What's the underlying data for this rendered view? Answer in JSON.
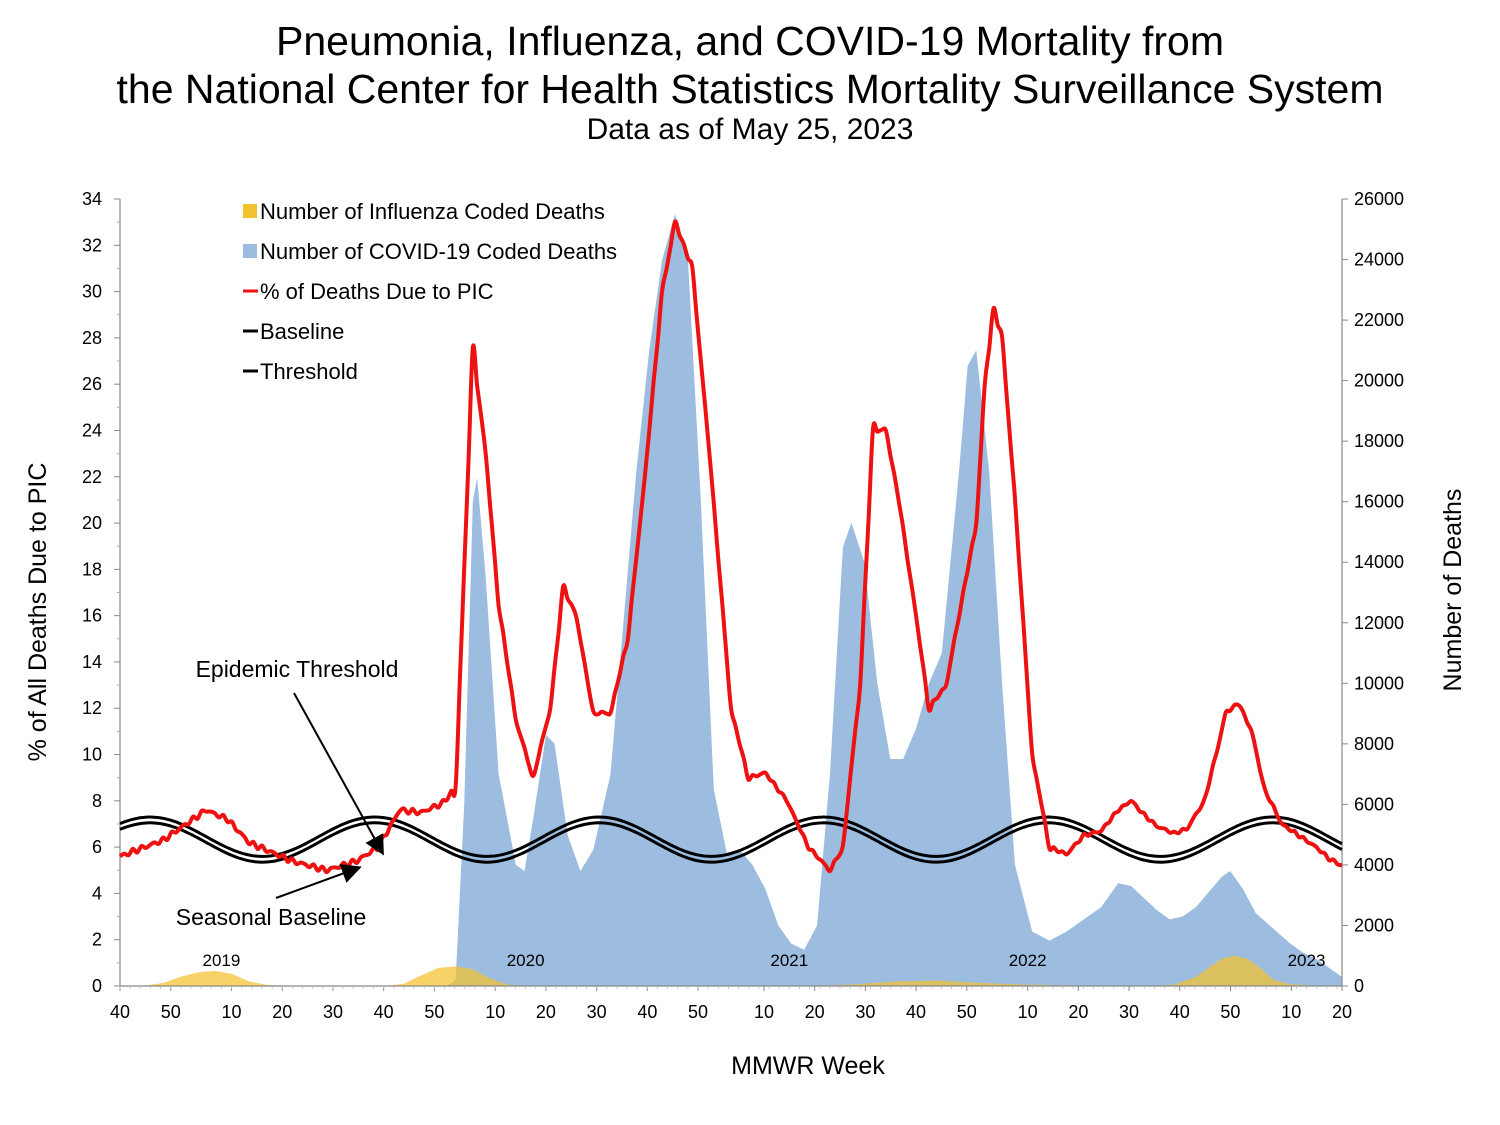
{
  "chart_data": {
    "type": "area",
    "title_line1": "Pneumonia, Influenza, and COVID-19 Mortality from",
    "title_line2": "the National Center for Health Statistics Mortality Surveillance System",
    "subtitle": "Data as of May 25, 2023",
    "xlabel": "MMWR Week",
    "ylabel_left": "% of All Deaths Due to PIC",
    "ylabel_right": "Number of Deaths",
    "ylim_left": [
      0,
      34
    ],
    "ylim_right": [
      0,
      26000
    ],
    "left_ticks": [
      0,
      2,
      4,
      6,
      8,
      10,
      12,
      14,
      16,
      18,
      20,
      22,
      24,
      26,
      28,
      30,
      32,
      34
    ],
    "right_ticks": [
      0,
      2000,
      4000,
      6000,
      8000,
      10000,
      12000,
      14000,
      16000,
      18000,
      20000,
      22000,
      24000,
      26000
    ],
    "x_ticks": [
      "40",
      "50",
      "10",
      "20",
      "30",
      "40",
      "50",
      "10",
      "20",
      "30",
      "40",
      "50",
      "10",
      "20",
      "30",
      "40",
      "50",
      "10",
      "20",
      "30",
      "40",
      "50",
      "10",
      "20"
    ],
    "year_labels": [
      {
        "label": "2019",
        "week_index": 20
      },
      {
        "label": "2020",
        "week_index": 80
      },
      {
        "label": "2021",
        "week_index": 132
      },
      {
        "label": "2022",
        "week_index": 179
      },
      {
        "label": "2023",
        "week_index": 234
      }
    ],
    "legend": [
      {
        "label": "Number of Influenza Coded Deaths",
        "kind": "area",
        "color": "#f2c12e"
      },
      {
        "label": "Number of COVID-19 Coded Deaths",
        "kind": "area",
        "color": "#9dbde0"
      },
      {
        "label": "% of Deaths Due to PIC",
        "kind": "line",
        "color": "#ee1111"
      },
      {
        "label": "Baseline",
        "kind": "line",
        "color": "#000000"
      },
      {
        "label": "Threshold",
        "kind": "line",
        "color": "#000000"
      }
    ],
    "legend_position": "top-left",
    "annotations": [
      {
        "label": "Epidemic Threshold"
      },
      {
        "label": "Seasonal Baseline"
      }
    ],
    "n_weeks": 241,
    "series": [
      {
        "name": "% of Deaths Due to PIC",
        "axis": "left",
        "color": "#ee1111",
        "points": [
          [
            0,
            5.6
          ],
          [
            10,
            6.3
          ],
          [
            20,
            7.6
          ],
          [
            25,
            7.2
          ],
          [
            30,
            6.2
          ],
          [
            40,
            5.4
          ],
          [
            48,
            5.0
          ],
          [
            55,
            5.4
          ],
          [
            60,
            6.0
          ],
          [
            65,
            7.6
          ],
          [
            70,
            7.5
          ],
          [
            75,
            7.9
          ],
          [
            78,
            8.6
          ],
          [
            80,
            18.0
          ],
          [
            82,
            27.5
          ],
          [
            85,
            23.0
          ],
          [
            88,
            16.5
          ],
          [
            92,
            11.5
          ],
          [
            96,
            9.0
          ],
          [
            100,
            12.0
          ],
          [
            103,
            17.2
          ],
          [
            106,
            16.0
          ],
          [
            110,
            11.8
          ],
          [
            114,
            11.8
          ],
          [
            118,
            15.0
          ],
          [
            122,
            22.0
          ],
          [
            126,
            30.0
          ],
          [
            129,
            33.0
          ],
          [
            133,
            31.0
          ],
          [
            137,
            23.0
          ],
          [
            142,
            12.0
          ],
          [
            146,
            9.0
          ],
          [
            150,
            9.2
          ],
          [
            155,
            8.0
          ],
          [
            160,
            6.0
          ],
          [
            165,
            5.0
          ],
          [
            168,
            6.0
          ],
          [
            172,
            13.0
          ],
          [
            175,
            24.0
          ],
          [
            178,
            24.0
          ],
          [
            181,
            21.0
          ],
          [
            185,
            16.0
          ],
          [
            188,
            12.0
          ],
          [
            192,
            13.0
          ],
          [
            195,
            16.0
          ],
          [
            199,
            20.0
          ],
          [
            201,
            26.0
          ],
          [
            203,
            29.2
          ],
          [
            205,
            28.0
          ],
          [
            208,
            21.0
          ],
          [
            212,
            10.0
          ],
          [
            216,
            6.0
          ],
          [
            220,
            5.7
          ],
          [
            224,
            6.5
          ],
          [
            228,
            6.7
          ],
          [
            232,
            7.6
          ],
          [
            235,
            8.0
          ],
          [
            238,
            7.4
          ],
          [
            241,
            6.9
          ],
          [
            245,
            6.6
          ],
          [
            248,
            6.8
          ],
          [
            252,
            8.0
          ],
          [
            255,
            10.2
          ],
          [
            257,
            11.8
          ],
          [
            260,
            12.2
          ],
          [
            263,
            11.0
          ],
          [
            266,
            8.5
          ],
          [
            270,
            7.0
          ],
          [
            274,
            6.5
          ],
          [
            278,
            6.0
          ],
          [
            281,
            5.5
          ],
          [
            284,
            5.2
          ]
        ]
      },
      {
        "name": "Baseline",
        "axis": "left",
        "color": "#000000",
        "mean": 6.2,
        "amplitude": 0.85,
        "phase_week": 7,
        "period": 52.18
      },
      {
        "name": "Threshold",
        "axis": "left",
        "color": "#000000",
        "mean": 6.45,
        "amplitude": 0.85,
        "phase_week": 7,
        "period": 52.18
      },
      {
        "name": "Number of COVID-19 Coded Deaths",
        "axis": "right",
        "color": "#9dbde0",
        "points": [
          [
            0,
            0
          ],
          [
            76,
            0
          ],
          [
            78,
            200
          ],
          [
            80,
            6000
          ],
          [
            82,
            16000
          ],
          [
            83,
            16800
          ],
          [
            85,
            13500
          ],
          [
            88,
            7000
          ],
          [
            92,
            4000
          ],
          [
            94,
            3800
          ],
          [
            96,
            5500
          ],
          [
            99,
            8300
          ],
          [
            101,
            8000
          ],
          [
            104,
            5000
          ],
          [
            107,
            3800
          ],
          [
            110,
            4500
          ],
          [
            114,
            7000
          ],
          [
            117,
            12000
          ],
          [
            120,
            17000
          ],
          [
            123,
            21000
          ],
          [
            126,
            24000
          ],
          [
            129,
            25500
          ],
          [
            132,
            24000
          ],
          [
            135,
            16000
          ],
          [
            138,
            6500
          ],
          [
            141,
            4400
          ],
          [
            144,
            4500
          ],
          [
            147,
            4000
          ],
          [
            150,
            3200
          ],
          [
            153,
            2000
          ],
          [
            156,
            1400
          ],
          [
            159,
            1200
          ],
          [
            162,
            2000
          ],
          [
            165,
            7000
          ],
          [
            168,
            14500
          ],
          [
            170,
            15300
          ],
          [
            173,
            14000
          ],
          [
            176,
            10000
          ],
          [
            179,
            7500
          ],
          [
            182,
            7500
          ],
          [
            185,
            8500
          ],
          [
            188,
            10000
          ],
          [
            191,
            11000
          ],
          [
            193,
            14000
          ],
          [
            195,
            17000
          ],
          [
            197,
            20500
          ],
          [
            199,
            21000
          ],
          [
            202,
            17000
          ],
          [
            205,
            10000
          ],
          [
            208,
            4000
          ],
          [
            212,
            1800
          ],
          [
            216,
            1500
          ],
          [
            220,
            1800
          ],
          [
            224,
            2200
          ],
          [
            228,
            2600
          ],
          [
            232,
            3400
          ],
          [
            235,
            3300
          ],
          [
            238,
            2900
          ],
          [
            241,
            2500
          ],
          [
            244,
            2200
          ],
          [
            247,
            2300
          ],
          [
            250,
            2600
          ],
          [
            253,
            3100
          ],
          [
            256,
            3600
          ],
          [
            258,
            3800
          ],
          [
            261,
            3200
          ],
          [
            264,
            2400
          ],
          [
            268,
            1900
          ],
          [
            272,
            1400
          ],
          [
            275,
            1100
          ],
          [
            278,
            900
          ],
          [
            281,
            600
          ],
          [
            284,
            300
          ]
        ]
      },
      {
        "name": "Number of Influenza Coded Deaths",
        "axis": "right",
        "color": "#f2c12e",
        "points": [
          [
            0,
            0
          ],
          [
            5,
            0
          ],
          [
            10,
            100
          ],
          [
            14,
            300
          ],
          [
            18,
            450
          ],
          [
            22,
            500
          ],
          [
            26,
            400
          ],
          [
            30,
            150
          ],
          [
            34,
            40
          ],
          [
            40,
            0
          ],
          [
            62,
            0
          ],
          [
            66,
            80
          ],
          [
            70,
            350
          ],
          [
            74,
            600
          ],
          [
            78,
            650
          ],
          [
            82,
            550
          ],
          [
            86,
            250
          ],
          [
            90,
            50
          ],
          [
            94,
            0
          ],
          [
            160,
            0
          ],
          [
            170,
            50
          ],
          [
            180,
            150
          ],
          [
            190,
            180
          ],
          [
            200,
            100
          ],
          [
            210,
            50
          ],
          [
            220,
            20
          ],
          [
            230,
            0
          ],
          [
            240,
            0
          ],
          [
            245,
            50
          ],
          [
            250,
            300
          ],
          [
            254,
            700
          ],
          [
            256,
            900
          ],
          [
            259,
            1000
          ],
          [
            262,
            900
          ],
          [
            265,
            600
          ],
          [
            268,
            200
          ],
          [
            272,
            60
          ],
          [
            278,
            10
          ],
          [
            284,
            0
          ]
        ]
      }
    ]
  }
}
